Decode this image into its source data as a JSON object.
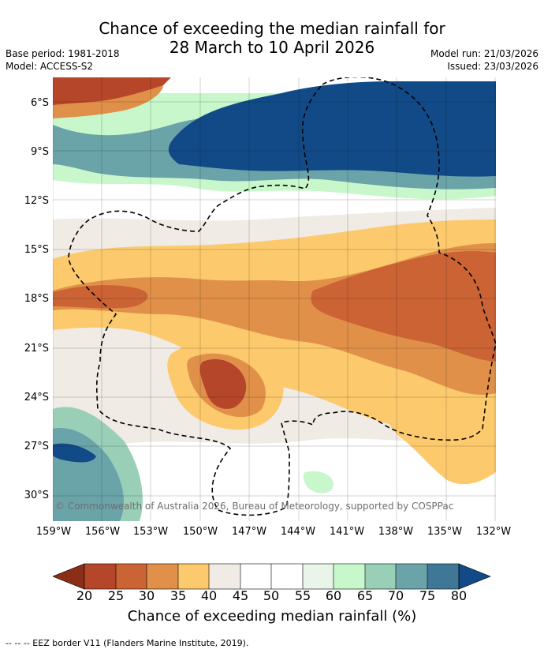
{
  "title": {
    "line1": "Chance of exceeding the median rainfall for",
    "line2": "28 March to 10 April 2026"
  },
  "meta": {
    "base_period": "Base period: 1981-2018",
    "model": "Model: ACCESS-S2",
    "model_run": "Model run: 21/03/2026",
    "issued": "Issued: 23/03/2026"
  },
  "map": {
    "lat_labels": [
      "6°S",
      "9°S",
      "12°S",
      "15°S",
      "18°S",
      "21°S",
      "24°S",
      "27°S",
      "30°S"
    ],
    "lon_labels": [
      "159°W",
      "156°W",
      "153°W",
      "150°W",
      "147°W",
      "144°W",
      "141°W",
      "138°W",
      "135°W",
      "132°W"
    ],
    "copyright": "© Commonwealth of Australia 2026, Bureau of Meteorology, supported by COSPPac",
    "zones": [
      {
        "region": "north-central to east",
        "value": 80
      },
      {
        "region": "north band transition",
        "value": 70
      },
      {
        "region": "northwest corner",
        "value": 25
      },
      {
        "region": "central-west band",
        "value": 35
      },
      {
        "region": "central-east band",
        "value": 25
      },
      {
        "region": "south-central blob",
        "value": 25
      },
      {
        "region": "southwest corner",
        "value": 75
      }
    ]
  },
  "colorbar": {
    "ticks": [
      "20",
      "25",
      "30",
      "35",
      "40",
      "45",
      "50",
      "55",
      "60",
      "65",
      "70",
      "75",
      "80"
    ],
    "colors": [
      "#8c2d16",
      "#b5462a",
      "#cb6334",
      "#e09049",
      "#fcc96c",
      "#f0ebe4",
      "#ffffff",
      "#ffffff",
      "#e9f5e9",
      "#c8f7cb",
      "#99cfb7",
      "#6aa4a9",
      "#3f7896",
      "#114a86"
    ],
    "title": "Chance of exceeding median rainfall (%)"
  },
  "footer": "-- -- -- EEZ border V11 (Flanders Marine Institute, 2019)."
}
